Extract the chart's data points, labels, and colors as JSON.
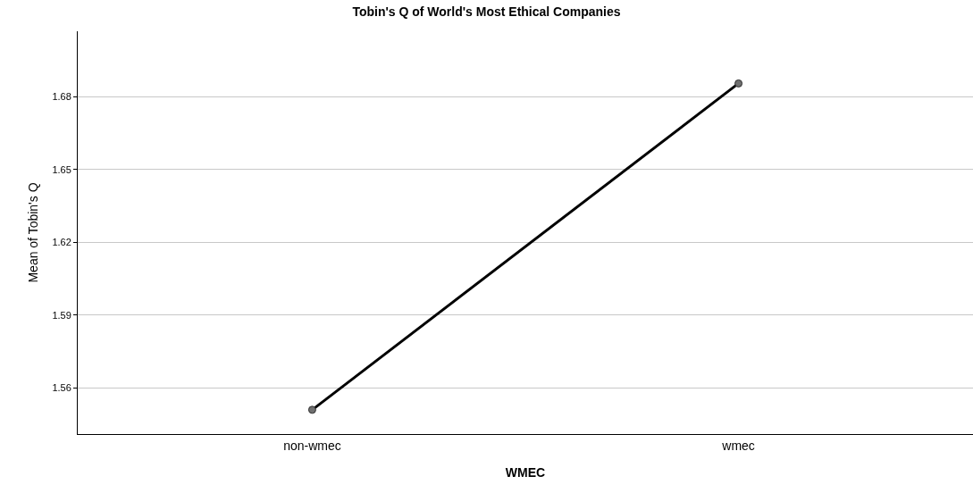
{
  "chart_data": {
    "type": "line",
    "title": "Tobin's Q of World's Most Ethical Companies",
    "xlabel": "WMEC",
    "ylabel": "Mean of Tobin's Q",
    "categories": [
      "non-wmec",
      "wmec"
    ],
    "series": [
      {
        "color": "#000000",
        "values": [
          1.551,
          1.6855
        ]
      }
    ],
    "ylim": [
      1.541,
      1.707
    ],
    "yticks": [
      1.56,
      1.59,
      1.62,
      1.65,
      1.68
    ],
    "grid": "y",
    "marker": "circle",
    "line_style": "solid",
    "legend": false
  }
}
